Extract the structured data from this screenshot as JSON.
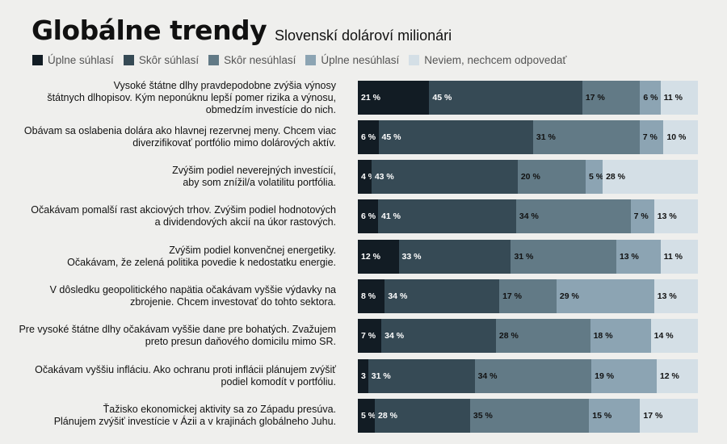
{
  "chart_data": {
    "type": "bar",
    "orientation": "horizontal-stacked-100",
    "title": "Globálne trendy",
    "subtitle": "Slovenskí dolároví milionári",
    "legend_position": "top-left",
    "series": [
      {
        "name": "Úplne súhlasí",
        "color": "#121c24",
        "values": [
          21,
          6,
          4,
          6,
          12,
          8,
          7,
          3,
          5
        ]
      },
      {
        "name": "Skôr súhlasí",
        "color": "#364a55",
        "values": [
          45,
          45,
          43,
          41,
          33,
          34,
          34,
          31,
          28
        ]
      },
      {
        "name": "Skôr nesúhlasí",
        "color": "#627a86",
        "values": [
          17,
          31,
          20,
          34,
          31,
          17,
          28,
          34,
          35
        ]
      },
      {
        "name": "Úplne nesúhlasí",
        "color": "#8ca4b3",
        "values": [
          6,
          7,
          5,
          7,
          13,
          29,
          18,
          19,
          15
        ]
      },
      {
        "name": "Neviem, nechcem odpovedať",
        "color": "#d4dfe6",
        "values": [
          11,
          10,
          28,
          13,
          11,
          13,
          14,
          12,
          17
        ]
      }
    ],
    "categories": [
      [
        "Vysoké štátne dlhy pravdepodobne zvýšia výnosy",
        "štátnych dlhopisov. Kým neponúknu lepší pomer rizika a výnosu,",
        "obmedzím investície do nich."
      ],
      [
        "Obávam sa oslabenia dolára ako hlavnej rezervnej meny. Chcem viac",
        "diverzifikovať portfólio mimo dolárových aktív."
      ],
      [
        "Zvýšim podiel neverejných investícií,",
        "aby som znížil/a volatilitu portfólia."
      ],
      [
        "Očakávam pomalší rast akciových trhov. Zvýšim podiel hodnotových",
        "a dividendových akcií na úkor rastových."
      ],
      [
        "Zvýšim podiel konvenčnej energetiky.",
        "Očakávam, že zelená politika povedie k nedostatku energie."
      ],
      [
        "V dôsledku geopolitického napätia očakávam vyššie výdavky na",
        "zbrojenie. Chcem investovať do tohto sektora."
      ],
      [
        "Pre vysoké štátne dlhy očakávam vyššie dane pre bohatých. Zvažujem",
        "preto presun daňového domicilu mimo SR."
      ],
      [
        "Očakávam vyššiu infláciu. Ako ochranu proti inflácii plánujem zvýšiť",
        "podiel komodít v portfóliu."
      ],
      [
        "Ťažisko ekonomickej aktivity sa zo Západu presúva.",
        "Plánujem zvýšiť investície v Ázii a v krajinách globálneho Juhu."
      ]
    ],
    "value_suffix": " %",
    "label_colors": [
      "#ffffff",
      "#ffffff",
      "#111111",
      "#111111",
      "#111111"
    ]
  }
}
